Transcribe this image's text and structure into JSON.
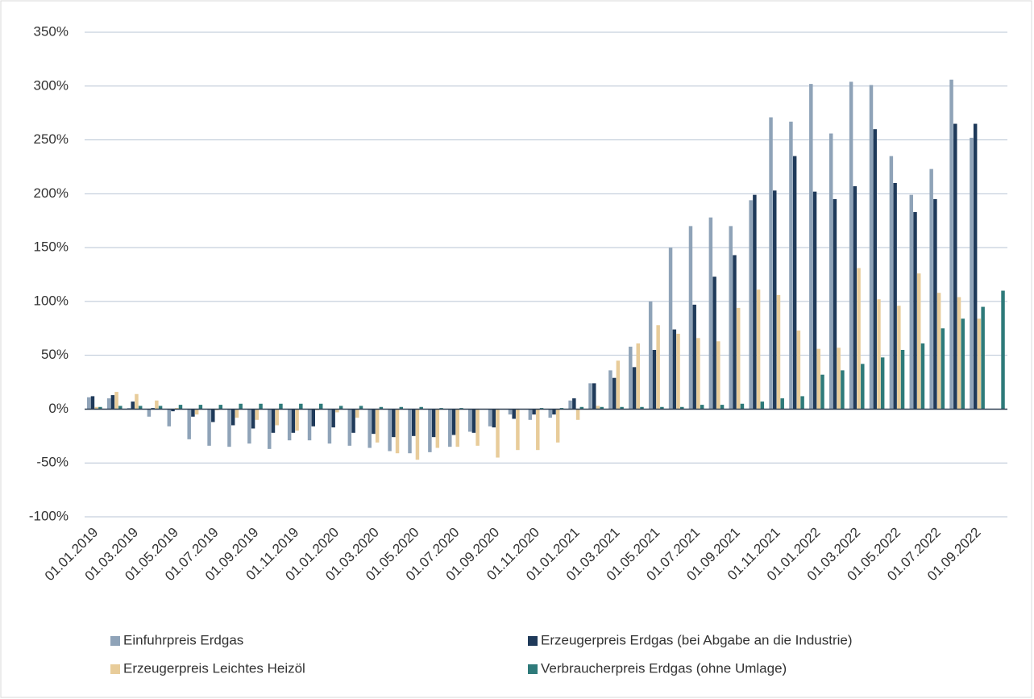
{
  "chart_data": {
    "type": "bar",
    "categories": [
      "01.01.2019",
      null,
      "01.03.2019",
      null,
      "01.05.2019",
      null,
      "01.07.2019",
      null,
      "01.09.2019",
      null,
      "01.11.2019",
      null,
      "01.01.2020",
      null,
      "01.03.2020",
      null,
      "01.05.2020",
      null,
      "01.07.2020",
      null,
      "01.09.2020",
      null,
      "01.11.2020",
      null,
      "01.01.2021",
      null,
      "01.03.2021",
      null,
      "01.05.2021",
      null,
      "01.07.2021",
      null,
      "01.09.2021",
      null,
      "01.11.2021",
      null,
      "01.01.2022",
      null,
      "01.03.2022",
      null,
      "01.05.2022",
      null,
      "01.07.2022",
      null,
      "01.09.2022",
      null
    ],
    "series": [
      {
        "name": "Einfuhrpreis Erdgas",
        "color": "#8fa3b8",
        "values": [
          11,
          10,
          1,
          -7,
          -16,
          -28,
          -34,
          -35,
          -32,
          -37,
          -29,
          -29,
          -32,
          -34,
          -36,
          -39,
          -41,
          -40,
          -35,
          -21,
          -16,
          -5,
          -10,
          -8,
          8,
          24,
          36,
          58,
          100,
          150,
          170,
          178,
          170,
          194,
          271,
          267,
          302,
          256,
          304,
          301,
          235,
          199,
          223,
          306,
          252,
          null
        ]
      },
      {
        "name": "Erzeugerpreis Erdgas (bei Abgabe an die Industrie)",
        "color": "#1f3a5a",
        "values": [
          12,
          13,
          7,
          1,
          -2,
          -7,
          -12,
          -15,
          -18,
          -22,
          -22,
          -16,
          -17,
          -22,
          -23,
          -26,
          -25,
          -26,
          -24,
          -22,
          -17,
          -9,
          -5,
          -5,
          10,
          24,
          29,
          39,
          55,
          74,
          97,
          123,
          143,
          199,
          203,
          235,
          202,
          195,
          207,
          260,
          210,
          183,
          195,
          265,
          265,
          null
        ]
      },
      {
        "name": "Erzeugerpreis Leichtes Heizöl",
        "color": "#e8cc9a",
        "values": [
          2,
          16,
          14,
          8,
          1,
          -5,
          -1,
          -8,
          -10,
          -15,
          -20,
          -1,
          -3,
          -8,
          -31,
          -41,
          -47,
          -36,
          -35,
          -34,
          -45,
          -38,
          -38,
          -31,
          -10,
          3,
          45,
          61,
          78,
          70,
          66,
          63,
          94,
          111,
          106,
          73,
          56,
          57,
          131,
          102,
          96,
          126,
          108,
          104,
          84,
          null
        ]
      },
      {
        "name": "Verbraucherpreis Erdgas (ohne Umlage)",
        "color": "#2e7a7a",
        "values": [
          2,
          3,
          3,
          3,
          4,
          4,
          4,
          5,
          5,
          5,
          5,
          5,
          3,
          3,
          2,
          2,
          2,
          1,
          1,
          0,
          0,
          0,
          1,
          1,
          2,
          2,
          2,
          2,
          2,
          2,
          4,
          4,
          5,
          7,
          10,
          12,
          32,
          36,
          42,
          48,
          55,
          61,
          75,
          84,
          95,
          110
        ]
      }
    ],
    "ylim": [
      -100,
      350
    ],
    "yticks": [
      {
        "value": -100,
        "label": "-100%"
      },
      {
        "value": -50,
        "label": "-50%"
      },
      {
        "value": 0,
        "label": "0%"
      },
      {
        "value": 50,
        "label": "50%"
      },
      {
        "value": 100,
        "label": "100%"
      },
      {
        "value": 150,
        "label": "150%"
      },
      {
        "value": 200,
        "label": "200%"
      },
      {
        "value": 250,
        "label": "250%"
      },
      {
        "value": 300,
        "label": "300%"
      },
      {
        "value": 350,
        "label": "350%"
      }
    ],
    "grid": true
  }
}
